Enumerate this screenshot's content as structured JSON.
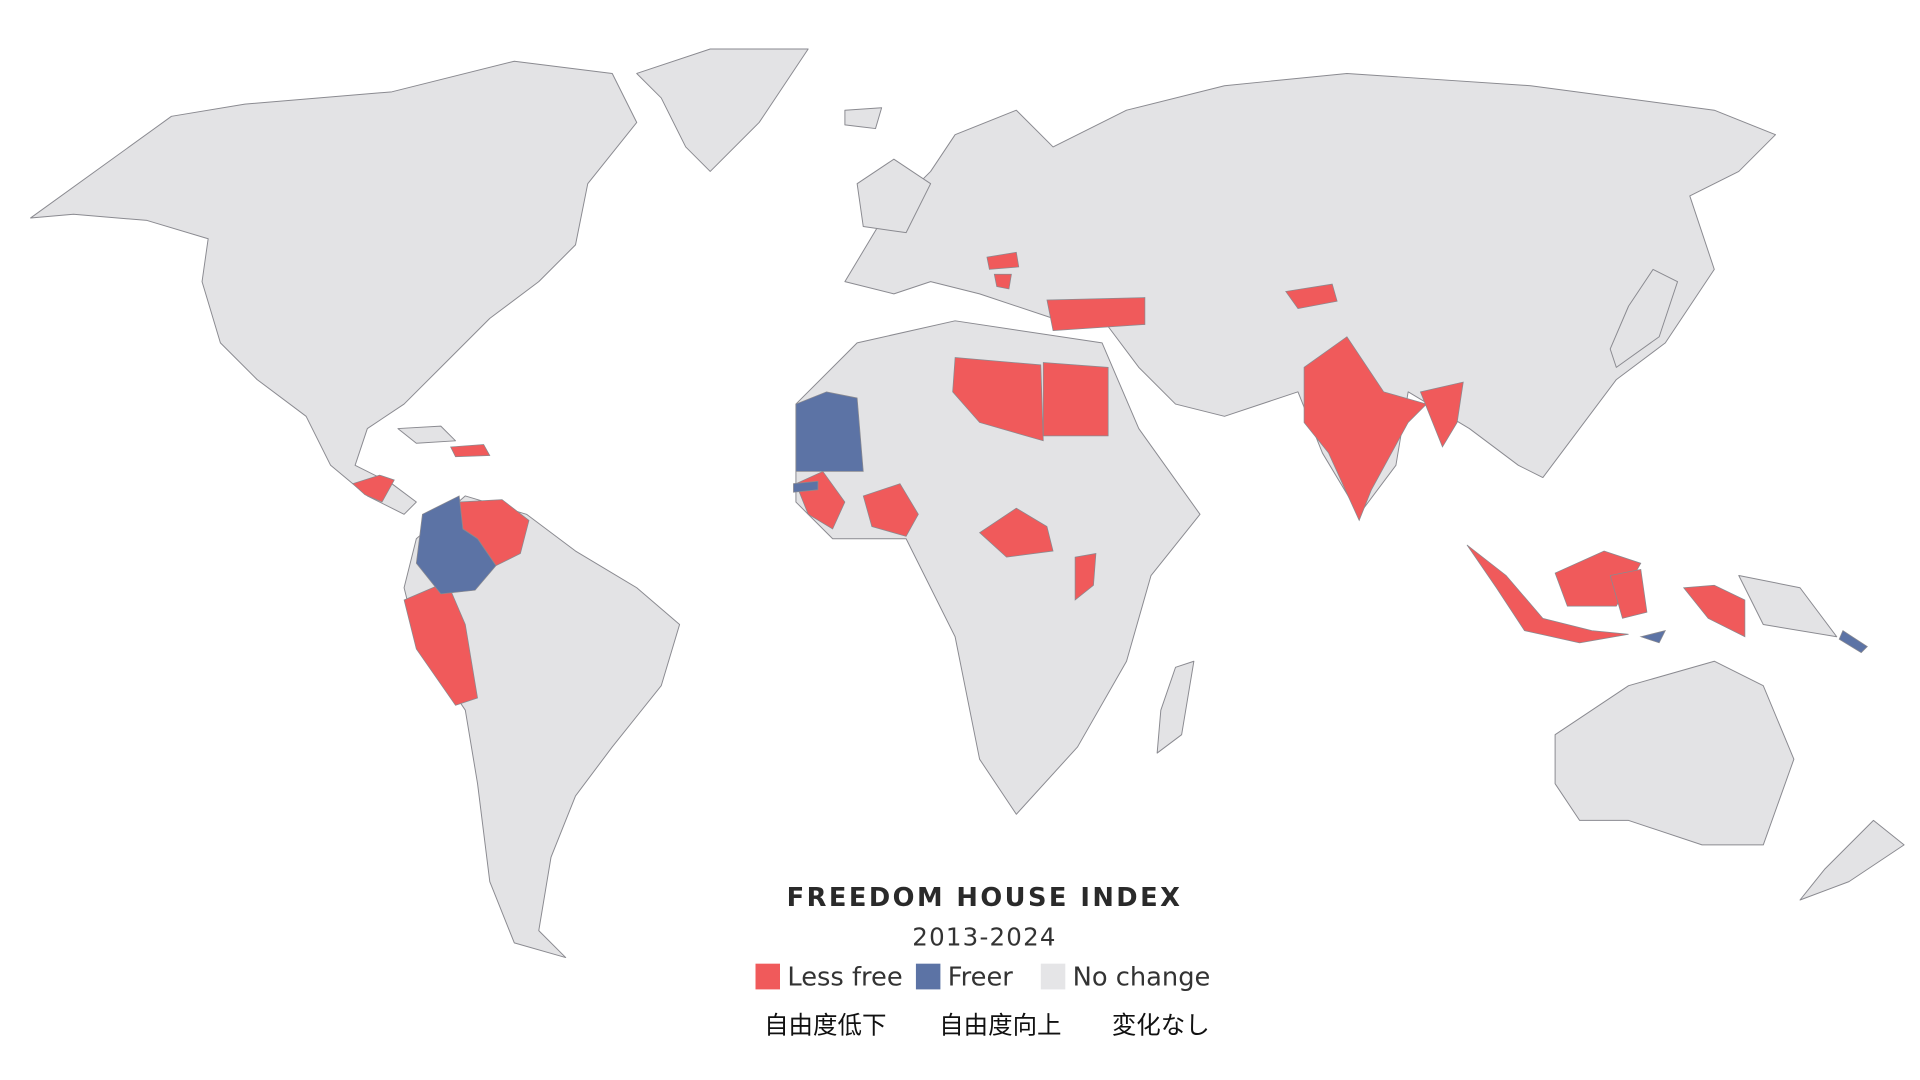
{
  "title": "FREEDOM HOUSE INDEX",
  "subtitle": "2013-2024",
  "legend": [
    {
      "label": "Less free",
      "label_ja": "自由度低下",
      "color": "#f05a5b"
    },
    {
      "label": "Freer",
      "label_ja": "自由度向上",
      "color": "#5c73a5"
    },
    {
      "label": "No change",
      "label_ja": "変化なし",
      "color": "#e5e5e7"
    }
  ]
}
